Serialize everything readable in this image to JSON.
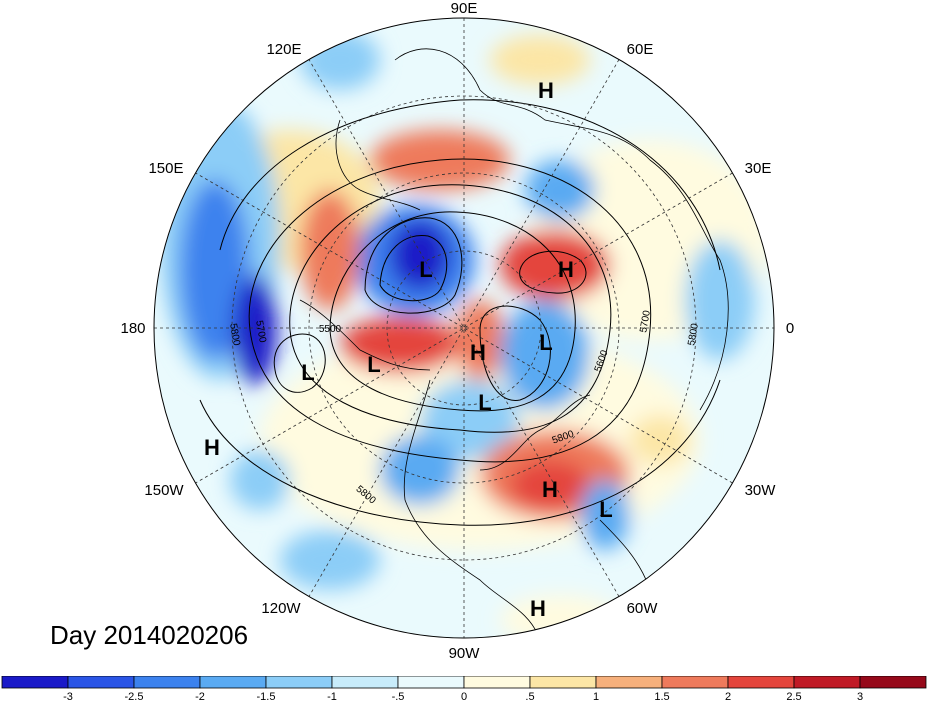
{
  "title": "Day 2014020206",
  "longitude_labels": [
    "90E",
    "60E",
    "30E",
    "0",
    "30W",
    "60W",
    "90W",
    "120W",
    "150W",
    "180",
    "150E",
    "120E"
  ],
  "pressure_systems": [
    {
      "type": "H",
      "region": "north-central-asia"
    },
    {
      "type": "L",
      "region": "east-siberia"
    },
    {
      "type": "H",
      "region": "ural-scandinavia"
    },
    {
      "type": "L",
      "region": "kamchatka"
    },
    {
      "type": "L",
      "region": "alaska"
    },
    {
      "type": "H",
      "region": "arctic"
    },
    {
      "type": "L",
      "region": "greenland"
    },
    {
      "type": "L",
      "region": "hudson-bay"
    },
    {
      "type": "H",
      "region": "north-atlantic"
    },
    {
      "type": "L",
      "region": "central-atlantic"
    },
    {
      "type": "H",
      "region": "central-pacific"
    },
    {
      "type": "H",
      "region": "caribbean"
    }
  ],
  "contour_labels": [
    "5500",
    "5600",
    "5700",
    "5700",
    "5800",
    "5800",
    "5800",
    "5800"
  ],
  "colorbar": {
    "ticks": [
      "-3",
      "-2.5",
      "-2",
      "-1.5",
      "-1",
      "-.5",
      "0",
      ".5",
      "1",
      "1.5",
      "2",
      "2.5",
      "3"
    ],
    "colors": [
      "#1a1ac8",
      "#2a55e6",
      "#3c82ee",
      "#5aaaf2",
      "#8ccdf7",
      "#c8ecfb",
      "#eafafd",
      "#fffbe0",
      "#fce6a6",
      "#f6b07c",
      "#ee7a5c",
      "#e4453c",
      "#c01a26",
      "#96091a"
    ]
  }
}
